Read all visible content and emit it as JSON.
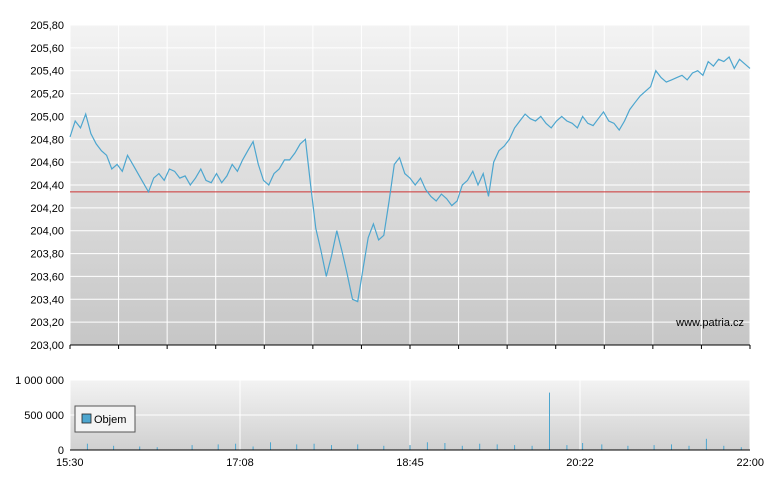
{
  "watermark": "www.patria.cz",
  "colors": {
    "price_line": "#4da6cf",
    "reference_line": "#cc3333",
    "volume_bar": "#4da6cf",
    "grid": "#ffffff",
    "plot_bg_top": "#f2f2f2",
    "plot_bg_bottom": "#c8c8c8",
    "axis": "#000000"
  },
  "chart_data": [
    {
      "type": "line",
      "name": "price",
      "ylim": [
        203.0,
        205.8
      ],
      "yticks": [
        "205,80",
        "205,60",
        "205,40",
        "205,20",
        "205,00",
        "204,80",
        "204,60",
        "204,40",
        "204,20",
        "204,00",
        "203,80",
        "203,60",
        "203,40",
        "203,20",
        "203,00"
      ],
      "reference_value": 204.34,
      "x_range": [
        "15:30",
        "22:00"
      ],
      "grid": true,
      "series": [
        {
          "values": [
            [
              "15:30",
              204.82
            ],
            [
              "15:33",
              204.96
            ],
            [
              "15:36",
              204.9
            ],
            [
              "15:39",
              205.02
            ],
            [
              "15:42",
              204.85
            ],
            [
              "15:45",
              204.76
            ],
            [
              "15:48",
              204.7
            ],
            [
              "15:51",
              204.66
            ],
            [
              "15:54",
              204.54
            ],
            [
              "15:57",
              204.58
            ],
            [
              "16:00",
              204.52
            ],
            [
              "16:03",
              204.66
            ],
            [
              "16:06",
              204.58
            ],
            [
              "16:09",
              204.5
            ],
            [
              "16:12",
              204.42
            ],
            [
              "16:15",
              204.34
            ],
            [
              "16:18",
              204.46
            ],
            [
              "16:21",
              204.5
            ],
            [
              "16:24",
              204.44
            ],
            [
              "16:27",
              204.54
            ],
            [
              "16:30",
              204.52
            ],
            [
              "16:33",
              204.46
            ],
            [
              "16:36",
              204.48
            ],
            [
              "16:39",
              204.4
            ],
            [
              "16:42",
              204.46
            ],
            [
              "16:45",
              204.54
            ],
            [
              "16:48",
              204.44
            ],
            [
              "16:51",
              204.42
            ],
            [
              "16:54",
              204.5
            ],
            [
              "16:57",
              204.42
            ],
            [
              "17:00",
              204.48
            ],
            [
              "17:03",
              204.58
            ],
            [
              "17:06",
              204.52
            ],
            [
              "17:09",
              204.62
            ],
            [
              "17:12",
              204.7
            ],
            [
              "17:15",
              204.78
            ],
            [
              "17:18",
              204.58
            ],
            [
              "17:21",
              204.44
            ],
            [
              "17:24",
              204.4
            ],
            [
              "17:27",
              204.5
            ],
            [
              "17:30",
              204.54
            ],
            [
              "17:33",
              204.62
            ],
            [
              "17:36",
              204.62
            ],
            [
              "17:39",
              204.68
            ],
            [
              "17:42",
              204.76
            ],
            [
              "17:45",
              204.8
            ],
            [
              "17:48",
              204.4
            ],
            [
              "17:51",
              204.02
            ],
            [
              "17:54",
              203.82
            ],
            [
              "17:57",
              203.6
            ],
            [
              "18:00",
              203.78
            ],
            [
              "18:03",
              204.0
            ],
            [
              "18:06",
              203.82
            ],
            [
              "18:09",
              203.62
            ],
            [
              "18:12",
              203.4
            ],
            [
              "18:15",
              203.38
            ],
            [
              "18:18",
              203.66
            ],
            [
              "18:21",
              203.94
            ],
            [
              "18:24",
              204.06
            ],
            [
              "18:27",
              203.92
            ],
            [
              "18:30",
              203.96
            ],
            [
              "18:33",
              204.26
            ],
            [
              "18:36",
              204.58
            ],
            [
              "18:39",
              204.64
            ],
            [
              "18:42",
              204.5
            ],
            [
              "18:45",
              204.46
            ],
            [
              "18:48",
              204.4
            ],
            [
              "18:51",
              204.46
            ],
            [
              "18:54",
              204.36
            ],
            [
              "18:57",
              204.3
            ],
            [
              "19:00",
              204.26
            ],
            [
              "19:03",
              204.32
            ],
            [
              "19:06",
              204.28
            ],
            [
              "19:09",
              204.22
            ],
            [
              "19:12",
              204.26
            ],
            [
              "19:15",
              204.4
            ],
            [
              "19:18",
              204.44
            ],
            [
              "19:21",
              204.52
            ],
            [
              "19:24",
              204.4
            ],
            [
              "19:27",
              204.5
            ],
            [
              "19:30",
              204.3
            ],
            [
              "19:33",
              204.6
            ],
            [
              "19:36",
              204.7
            ],
            [
              "19:39",
              204.74
            ],
            [
              "19:42",
              204.8
            ],
            [
              "19:45",
              204.9
            ],
            [
              "19:48",
              204.96
            ],
            [
              "19:51",
              205.02
            ],
            [
              "19:54",
              204.98
            ],
            [
              "19:57",
              204.96
            ],
            [
              "20:00",
              205.0
            ],
            [
              "20:03",
              204.94
            ],
            [
              "20:06",
              204.9
            ],
            [
              "20:09",
              204.96
            ],
            [
              "20:12",
              205.0
            ],
            [
              "20:15",
              204.96
            ],
            [
              "20:18",
              204.94
            ],
            [
              "20:21",
              204.9
            ],
            [
              "20:24",
              205.0
            ],
            [
              "20:27",
              204.94
            ],
            [
              "20:30",
              204.92
            ],
            [
              "20:33",
              204.98
            ],
            [
              "20:36",
              205.04
            ],
            [
              "20:39",
              204.96
            ],
            [
              "20:42",
              204.94
            ],
            [
              "20:45",
              204.88
            ],
            [
              "20:48",
              204.96
            ],
            [
              "20:51",
              205.06
            ],
            [
              "20:54",
              205.12
            ],
            [
              "20:57",
              205.18
            ],
            [
              "21:00",
              205.22
            ],
            [
              "21:03",
              205.26
            ],
            [
              "21:06",
              205.4
            ],
            [
              "21:09",
              205.34
            ],
            [
              "21:12",
              205.3
            ],
            [
              "21:15",
              205.32
            ],
            [
              "21:18",
              205.34
            ],
            [
              "21:21",
              205.36
            ],
            [
              "21:24",
              205.32
            ],
            [
              "21:27",
              205.38
            ],
            [
              "21:30",
              205.4
            ],
            [
              "21:33",
              205.36
            ],
            [
              "21:36",
              205.48
            ],
            [
              "21:39",
              205.44
            ],
            [
              "21:42",
              205.5
            ],
            [
              "21:45",
              205.48
            ],
            [
              "21:48",
              205.52
            ],
            [
              "21:51",
              205.42
            ],
            [
              "21:54",
              205.5
            ],
            [
              "21:57",
              205.46
            ],
            [
              "22:00",
              205.42
            ]
          ]
        }
      ]
    },
    {
      "type": "bar",
      "name": "volume",
      "ylim": [
        0,
        1000000
      ],
      "yticks": [
        "1 000 000",
        "500 000",
        "0"
      ],
      "xticks": [
        "15:30",
        "17:08",
        "18:45",
        "20:22",
        "22:00"
      ],
      "x_range": [
        "15:30",
        "22:00"
      ],
      "legend": {
        "label": "Objem",
        "placement": "left"
      },
      "grid": true,
      "series": [
        {
          "name": "Objem",
          "values": [
            [
              "15:40",
              90000
            ],
            [
              "15:55",
              60000
            ],
            [
              "16:10",
              50000
            ],
            [
              "16:20",
              40000
            ],
            [
              "16:40",
              70000
            ],
            [
              "16:55",
              80000
            ],
            [
              "17:05",
              90000
            ],
            [
              "17:15",
              50000
            ],
            [
              "17:25",
              110000
            ],
            [
              "17:40",
              80000
            ],
            [
              "17:50",
              90000
            ],
            [
              "18:00",
              70000
            ],
            [
              "18:15",
              80000
            ],
            [
              "18:30",
              60000
            ],
            [
              "18:45",
              70000
            ],
            [
              "18:55",
              110000
            ],
            [
              "19:05",
              100000
            ],
            [
              "19:15",
              60000
            ],
            [
              "19:25",
              90000
            ],
            [
              "19:35",
              80000
            ],
            [
              "19:45",
              70000
            ],
            [
              "19:55",
              60000
            ],
            [
              "20:05",
              820000
            ],
            [
              "20:15",
              70000
            ],
            [
              "20:24",
              100000
            ],
            [
              "20:35",
              80000
            ],
            [
              "20:50",
              60000
            ],
            [
              "21:05",
              70000
            ],
            [
              "21:15",
              80000
            ],
            [
              "21:25",
              60000
            ],
            [
              "21:35",
              160000
            ],
            [
              "21:45",
              60000
            ],
            [
              "21:55",
              40000
            ]
          ]
        }
      ]
    }
  ]
}
